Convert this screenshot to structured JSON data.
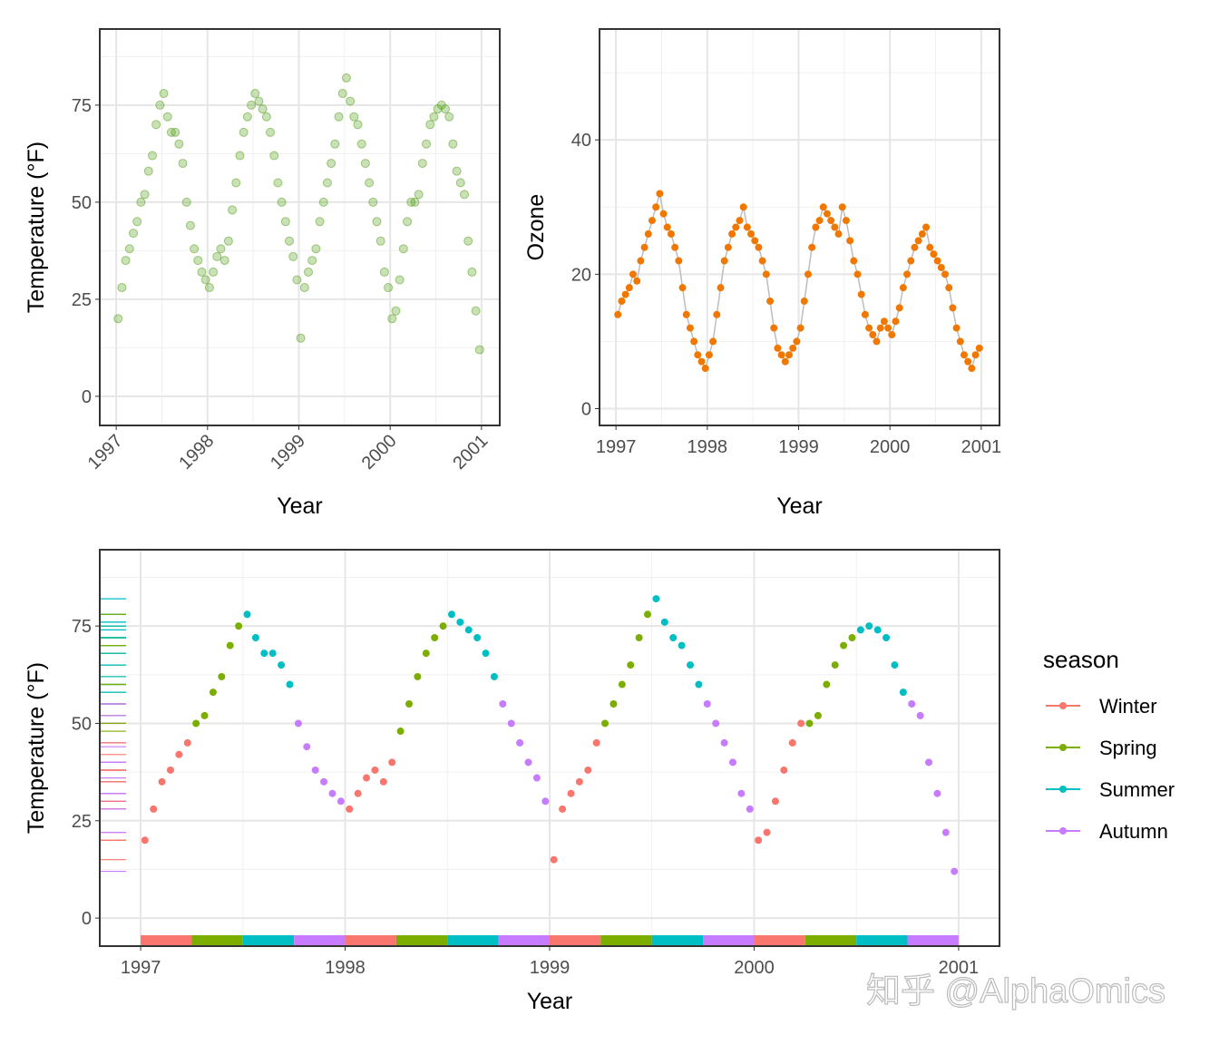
{
  "chart_data": [
    {
      "type": "scatter",
      "panel": "top-left",
      "xlabel": "Year",
      "ylabel": "Temperature (°F)",
      "x_ticks": [
        "1997",
        "1998",
        "1999",
        "2000",
        "2001"
      ],
      "y_ticks": [
        "0",
        "25",
        "50",
        "75"
      ],
      "xlim": [
        1996.82,
        2001.2
      ],
      "ylim": [
        -7.5,
        94.6
      ],
      "x_tick_rotation": "45°",
      "grid": true,
      "point_color": "#4d9a0c"
    },
    {
      "type": "line",
      "panel": "top-right",
      "xlabel": "Year",
      "ylabel": "Ozone",
      "x_ticks": [
        "1997",
        "1998",
        "1999",
        "2000",
        "2001"
      ],
      "y_ticks": [
        "0",
        "20",
        "40"
      ],
      "xlim": [
        1996.82,
        2001.2
      ],
      "ylim": [
        -2.5,
        56.5
      ],
      "grid": true,
      "point_color": "#f07800",
      "line_color": "#bdbdbd"
    },
    {
      "type": "scatter",
      "panel": "bottom",
      "xlabel": "Year",
      "ylabel": "Temperature (°F)",
      "x_ticks": [
        "1997",
        "1998",
        "1999",
        "2000",
        "2001"
      ],
      "y_ticks": [
        "0",
        "25",
        "50",
        "75"
      ],
      "xlim": [
        1996.8,
        2001.2
      ],
      "ylim": [
        -7.2,
        94.6
      ],
      "grid": true,
      "rug": "left",
      "season_bar": "bottom",
      "legend": {
        "title": "season",
        "placement": "right",
        "entries": [
          {
            "label": "Winter",
            "color": "#F8766D",
            "months": [
              1,
              2,
              3
            ]
          },
          {
            "label": "Spring",
            "color": "#7CAE00",
            "months": [
              4,
              5,
              6
            ]
          },
          {
            "label": "Summer",
            "color": "#00BFC4",
            "months": [
              7,
              8,
              9
            ]
          },
          {
            "label": "Autumn",
            "color": "#C77CFF",
            "months": [
              10,
              11,
              12
            ]
          }
        ]
      }
    }
  ],
  "series": {
    "months": [
      "1997-01",
      "1997-02",
      "1997-03",
      "1997-04",
      "1997-05",
      "1997-06",
      "1997-07",
      "1997-08",
      "1997-09",
      "1997-10",
      "1997-11",
      "1997-12",
      "1998-01",
      "1998-02",
      "1998-03",
      "1998-04",
      "1998-05",
      "1998-06",
      "1998-07",
      "1998-08",
      "1998-09",
      "1998-10",
      "1998-11",
      "1998-12",
      "1999-01",
      "1999-02",
      "1999-03",
      "1999-04",
      "1999-05",
      "1999-06",
      "1999-07",
      "1999-08",
      "1999-09",
      "1999-10",
      "1999-11",
      "1999-12",
      "2000-01",
      "2000-02",
      "2000-03",
      "2000-04",
      "2000-05",
      "2000-06",
      "2000-07",
      "2000-08",
      "2000-09",
      "2000-10",
      "2000-11",
      "2000-12"
    ],
    "temperature": [
      [
        20,
        28
      ],
      [
        35,
        38
      ],
      [
        42,
        45
      ],
      [
        50,
        52
      ],
      [
        58,
        62
      ],
      [
        70,
        75
      ],
      [
        78,
        72
      ],
      [
        68,
        68
      ],
      [
        65,
        60
      ],
      [
        50,
        44
      ],
      [
        38,
        35
      ],
      [
        32,
        30
      ],
      [
        28,
        32
      ],
      [
        36,
        38
      ],
      [
        35,
        40
      ],
      [
        48,
        55
      ],
      [
        62,
        68
      ],
      [
        72,
        75
      ],
      [
        78,
        76
      ],
      [
        74,
        72
      ],
      [
        68,
        62
      ],
      [
        55,
        50
      ],
      [
        45,
        40
      ],
      [
        36,
        30
      ],
      [
        15,
        28
      ],
      [
        32,
        35
      ],
      [
        38,
        45
      ],
      [
        50,
        55
      ],
      [
        60,
        65
      ],
      [
        72,
        78
      ],
      [
        82,
        76
      ],
      [
        72,
        70
      ],
      [
        65,
        60
      ],
      [
        55,
        50
      ],
      [
        45,
        40
      ],
      [
        32,
        28
      ],
      [
        20,
        22
      ],
      [
        30,
        38
      ],
      [
        45,
        50
      ],
      [
        50,
        52
      ],
      [
        60,
        65
      ],
      [
        70,
        72
      ],
      [
        74,
        75
      ],
      [
        74,
        72
      ],
      [
        65,
        58
      ],
      [
        55,
        52
      ],
      [
        40,
        32
      ],
      [
        22,
        12
      ]
    ],
    "ozone": [
      [
        14,
        16
      ],
      [
        17,
        18
      ],
      [
        20,
        19
      ],
      [
        22,
        24
      ],
      [
        26,
        28
      ],
      [
        30,
        32
      ],
      [
        29,
        27
      ],
      [
        26,
        24
      ],
      [
        22,
        18
      ],
      [
        14,
        12
      ],
      [
        10,
        8
      ],
      [
        7,
        6
      ],
      [
        8,
        10
      ],
      [
        14,
        18
      ],
      [
        22,
        24
      ],
      [
        26,
        27
      ],
      [
        28,
        30
      ],
      [
        27,
        26
      ],
      [
        25,
        24
      ],
      [
        22,
        20
      ],
      [
        16,
        12
      ],
      [
        9,
        8
      ],
      [
        7,
        8
      ],
      [
        9,
        10
      ],
      [
        12,
        16
      ],
      [
        20,
        24
      ],
      [
        27,
        28
      ],
      [
        30,
        29
      ],
      [
        28,
        27
      ],
      [
        26,
        30
      ],
      [
        28,
        25
      ],
      [
        22,
        20
      ],
      [
        17,
        14
      ],
      [
        12,
        11
      ],
      [
        10,
        12
      ],
      [
        13,
        12
      ],
      [
        11,
        13
      ],
      [
        15,
        18
      ],
      [
        20,
        22
      ],
      [
        24,
        25
      ],
      [
        26,
        27
      ],
      [
        24,
        23
      ],
      [
        22,
        21
      ],
      [
        20,
        18
      ],
      [
        15,
        12
      ],
      [
        10,
        8
      ],
      [
        7,
        6
      ],
      [
        8,
        9
      ]
    ]
  },
  "watermark": "知乎 @AlphaOmics"
}
